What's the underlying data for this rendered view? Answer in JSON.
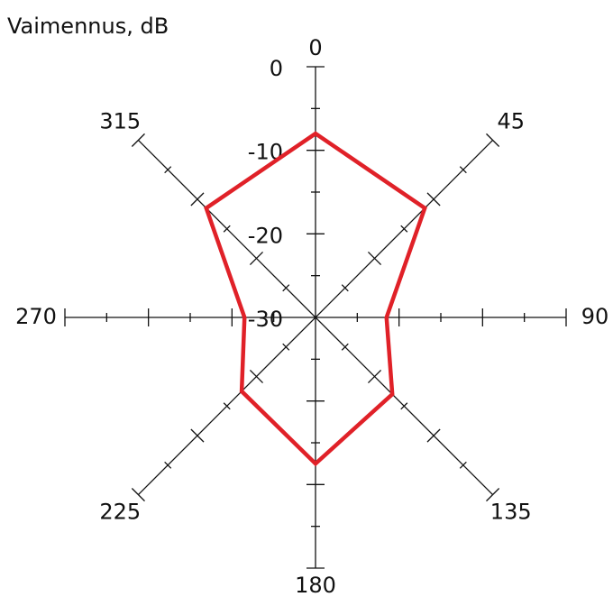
{
  "chart_data": {
    "type": "polar",
    "title": "Vaimennus, dB",
    "categories": [
      "0",
      "45",
      "90",
      "135",
      "180",
      "225",
      "270",
      "315"
    ],
    "values": [
      -8,
      -11.5,
      -21.5,
      -17,
      -12.5,
      -17.5,
      -21.5,
      -11.5
    ],
    "color": "#e02128",
    "rlim": [
      -30,
      0
    ],
    "rticks": [
      -30,
      -20,
      -10,
      0
    ],
    "minor_rticks": [
      -25,
      -15,
      -5
    ]
  }
}
